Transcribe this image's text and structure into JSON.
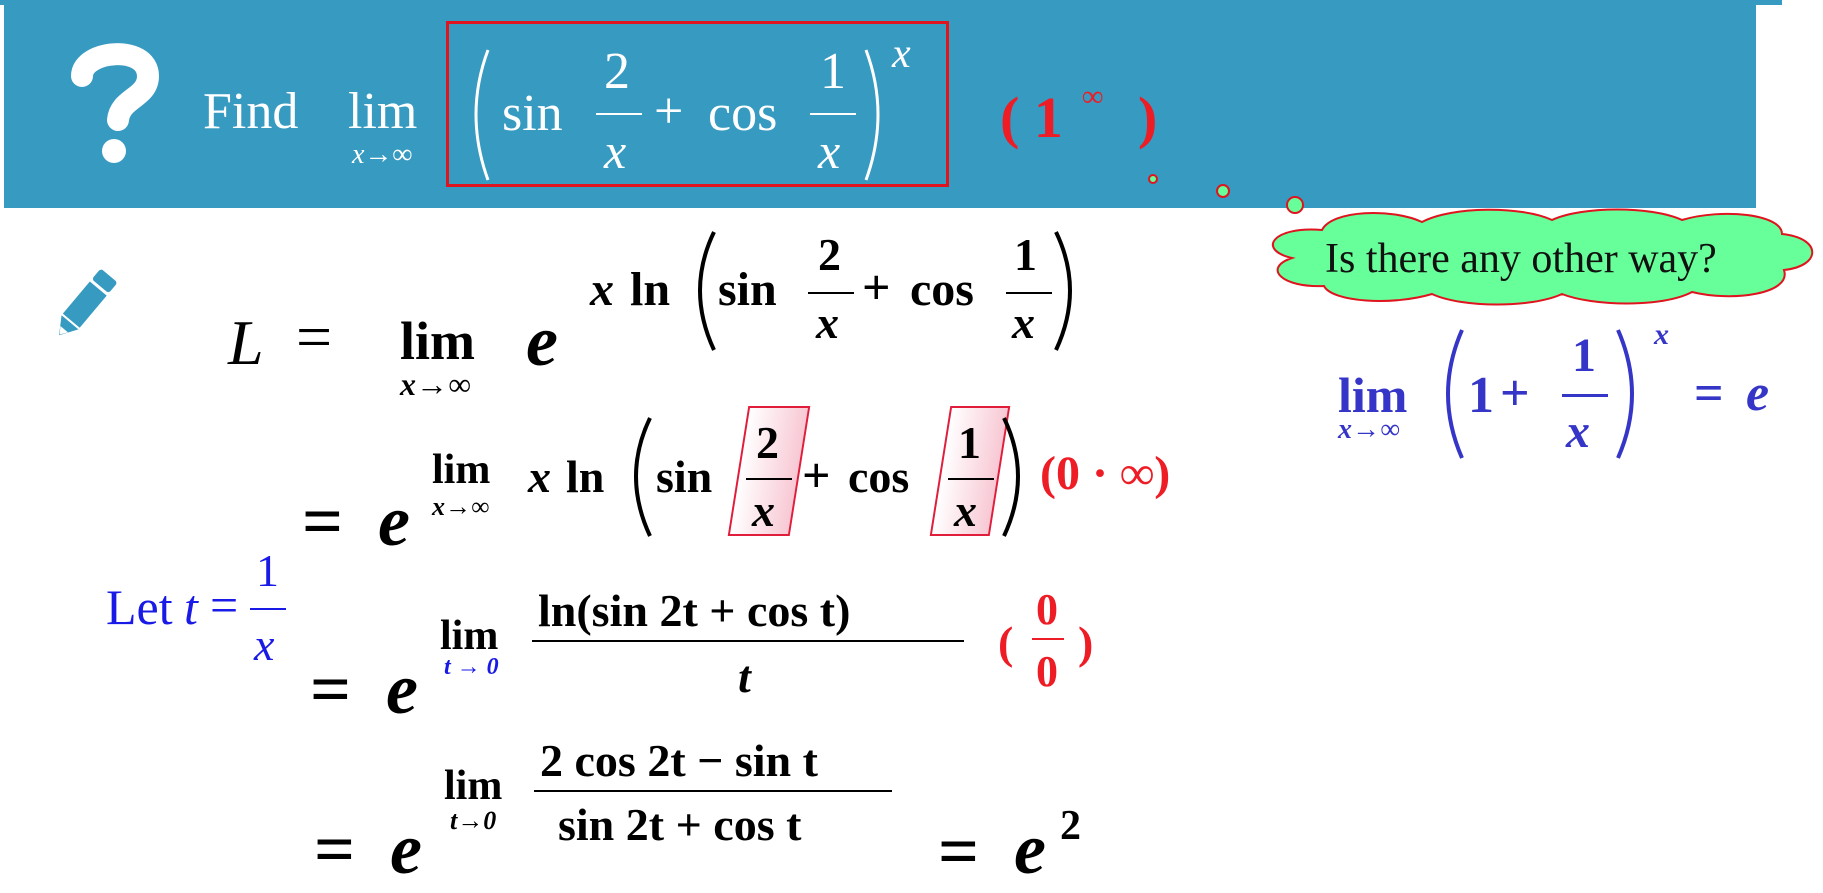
{
  "header": {
    "find": "Find",
    "lim": "lim",
    "lim_sub": "x→∞",
    "sin": "sin",
    "cos": "cos",
    "plus": "+",
    "num1": "2",
    "num2": "1",
    "den": "x",
    "exponent": "x",
    "indeterminate": "( 1",
    "indeterminate_sup": "∞",
    "indeterminate_close": ")"
  },
  "cloud": {
    "text": "Is there any other way?"
  },
  "step1": {
    "L": "L",
    "eq": "=",
    "lim": "lim",
    "lim_sub": "x→∞",
    "e": "e",
    "exp_x": "x",
    "ln": "ln",
    "sin": "sin",
    "cos": "cos",
    "plus": "+",
    "num1": "2",
    "num2": "1",
    "den": "x"
  },
  "step2": {
    "eq": "=",
    "e": "e",
    "lim": "lim",
    "lim_sub": "x→∞",
    "x": "x",
    "ln": "ln",
    "sin": "sin",
    "cos": "cos",
    "plus": "+",
    "num1": "2",
    "num2": "1",
    "den": "x",
    "indeterminate": "(0 · ∞)"
  },
  "substitution": {
    "let": "Let",
    "t": "t",
    "eq": "=",
    "num": "1",
    "den": "x"
  },
  "step3": {
    "eq": "=",
    "e": "e",
    "lim": "lim",
    "lim_sub": "t → 0",
    "numerator": "ln(sin 2t + cos t)",
    "denominator": "t",
    "indeterminate_open": "(",
    "indeterminate_num": "0",
    "indeterminate_den": "0",
    "indeterminate_close": ")"
  },
  "step4": {
    "eq": "=",
    "e": "e",
    "lim": "lim",
    "lim_sub": "t→0",
    "numerator": "2 cos 2t − sin t",
    "denominator": "sin 2t + cos t",
    "eq2": "=",
    "result_base": "e",
    "result_exp": "2"
  },
  "known_limit": {
    "lim": "lim",
    "lim_sub": "x→∞",
    "one": "1",
    "plus": "+",
    "num": "1",
    "den": "x",
    "exp": "x",
    "eq": "=",
    "e": "e"
  },
  "colors": {
    "banner": "#379ac1",
    "highlight_red": "#ee1c25",
    "cloud_fill": "#66ff99",
    "blue_text": "#1a1ae6",
    "purple_text": "#3535c8"
  }
}
